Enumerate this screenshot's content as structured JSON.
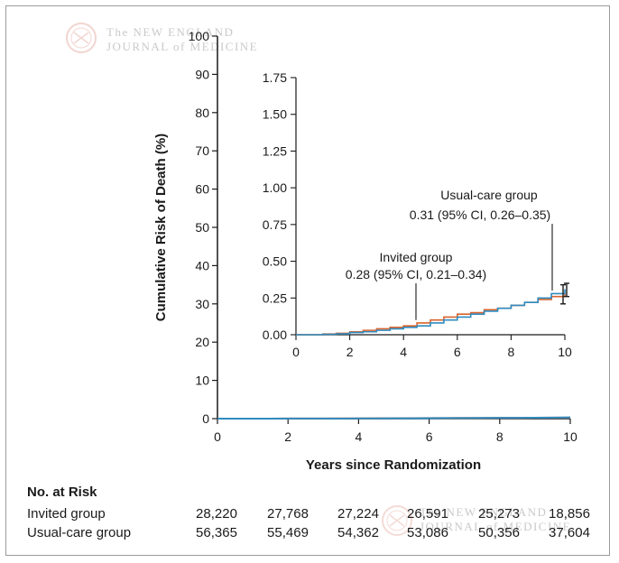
{
  "watermark": {
    "line1": "The NEW ENGLAND",
    "line2": "JOURNAL of MEDICINE"
  },
  "chart_data": {
    "type": "line",
    "xlabel": "Years since Randomization",
    "ylabel": "Cumulative Risk of Death (%)",
    "xlim": [
      0,
      10
    ],
    "ylim": [
      0,
      100
    ],
    "xticks": [
      0,
      2,
      4,
      6,
      8,
      10
    ],
    "yticks": [
      0,
      10,
      20,
      30,
      40,
      50,
      60,
      70,
      80,
      90,
      100
    ],
    "colors": {
      "invited": "#d8632c",
      "usual": "#2f8bc0"
    },
    "series": [
      {
        "name": "Invited group",
        "x": [
          0,
          1,
          1.5,
          2,
          2.5,
          3,
          3.5,
          4,
          4.5,
          5,
          5.5,
          6,
          6.5,
          7,
          7.5,
          8,
          8.5,
          9,
          9.5,
          10
        ],
        "y": [
          0,
          0.005,
          0.01,
          0.02,
          0.03,
          0.04,
          0.05,
          0.06,
          0.08,
          0.1,
          0.12,
          0.14,
          0.15,
          0.17,
          0.18,
          0.2,
          0.22,
          0.24,
          0.26,
          0.28
        ]
      },
      {
        "name": "Usual-care group",
        "x": [
          0,
          1,
          1.5,
          2,
          2.5,
          3,
          3.5,
          4,
          4.5,
          5,
          5.5,
          6,
          6.5,
          7,
          7.5,
          8,
          8.5,
          9,
          9.5,
          10
        ],
        "y": [
          0,
          0.003,
          0.006,
          0.015,
          0.02,
          0.03,
          0.04,
          0.05,
          0.06,
          0.08,
          0.1,
          0.12,
          0.14,
          0.16,
          0.18,
          0.2,
          0.22,
          0.25,
          0.28,
          0.31
        ]
      }
    ],
    "inset": {
      "xlim": [
        0,
        10
      ],
      "ylim": [
        0,
        1.75
      ],
      "xticks": [
        0,
        2,
        4,
        6,
        8,
        10
      ],
      "yticks": [
        "0.00",
        "0.25",
        "0.50",
        "0.75",
        "1.00",
        "1.25",
        "1.50",
        "1.75"
      ],
      "error_bars": [
        {
          "series": "Invited group",
          "x": 10,
          "y": 0.28,
          "low": 0.21,
          "high": 0.34
        },
        {
          "series": "Usual-care group",
          "x": 10,
          "y": 0.31,
          "low": 0.26,
          "high": 0.35
        }
      ]
    },
    "annotations": [
      {
        "series": "Invited group",
        "line1": "Invited group",
        "line2": "0.28 (95% CI, 0.21–0.34)"
      },
      {
        "series": "Usual-care group",
        "line1": "Usual-care group",
        "line2": "0.31 (95% CI, 0.26–0.35)"
      }
    ]
  },
  "risk_table": {
    "title": "No. at Risk",
    "rows": [
      {
        "label": "Invited group",
        "values": [
          "28,220",
          "27,768",
          "27,224",
          "26,591",
          "25,273",
          "18,856"
        ]
      },
      {
        "label": "Usual-care group",
        "values": [
          "56,365",
          "55,469",
          "54,362",
          "53,086",
          "50,356",
          "37,604"
        ]
      }
    ]
  }
}
